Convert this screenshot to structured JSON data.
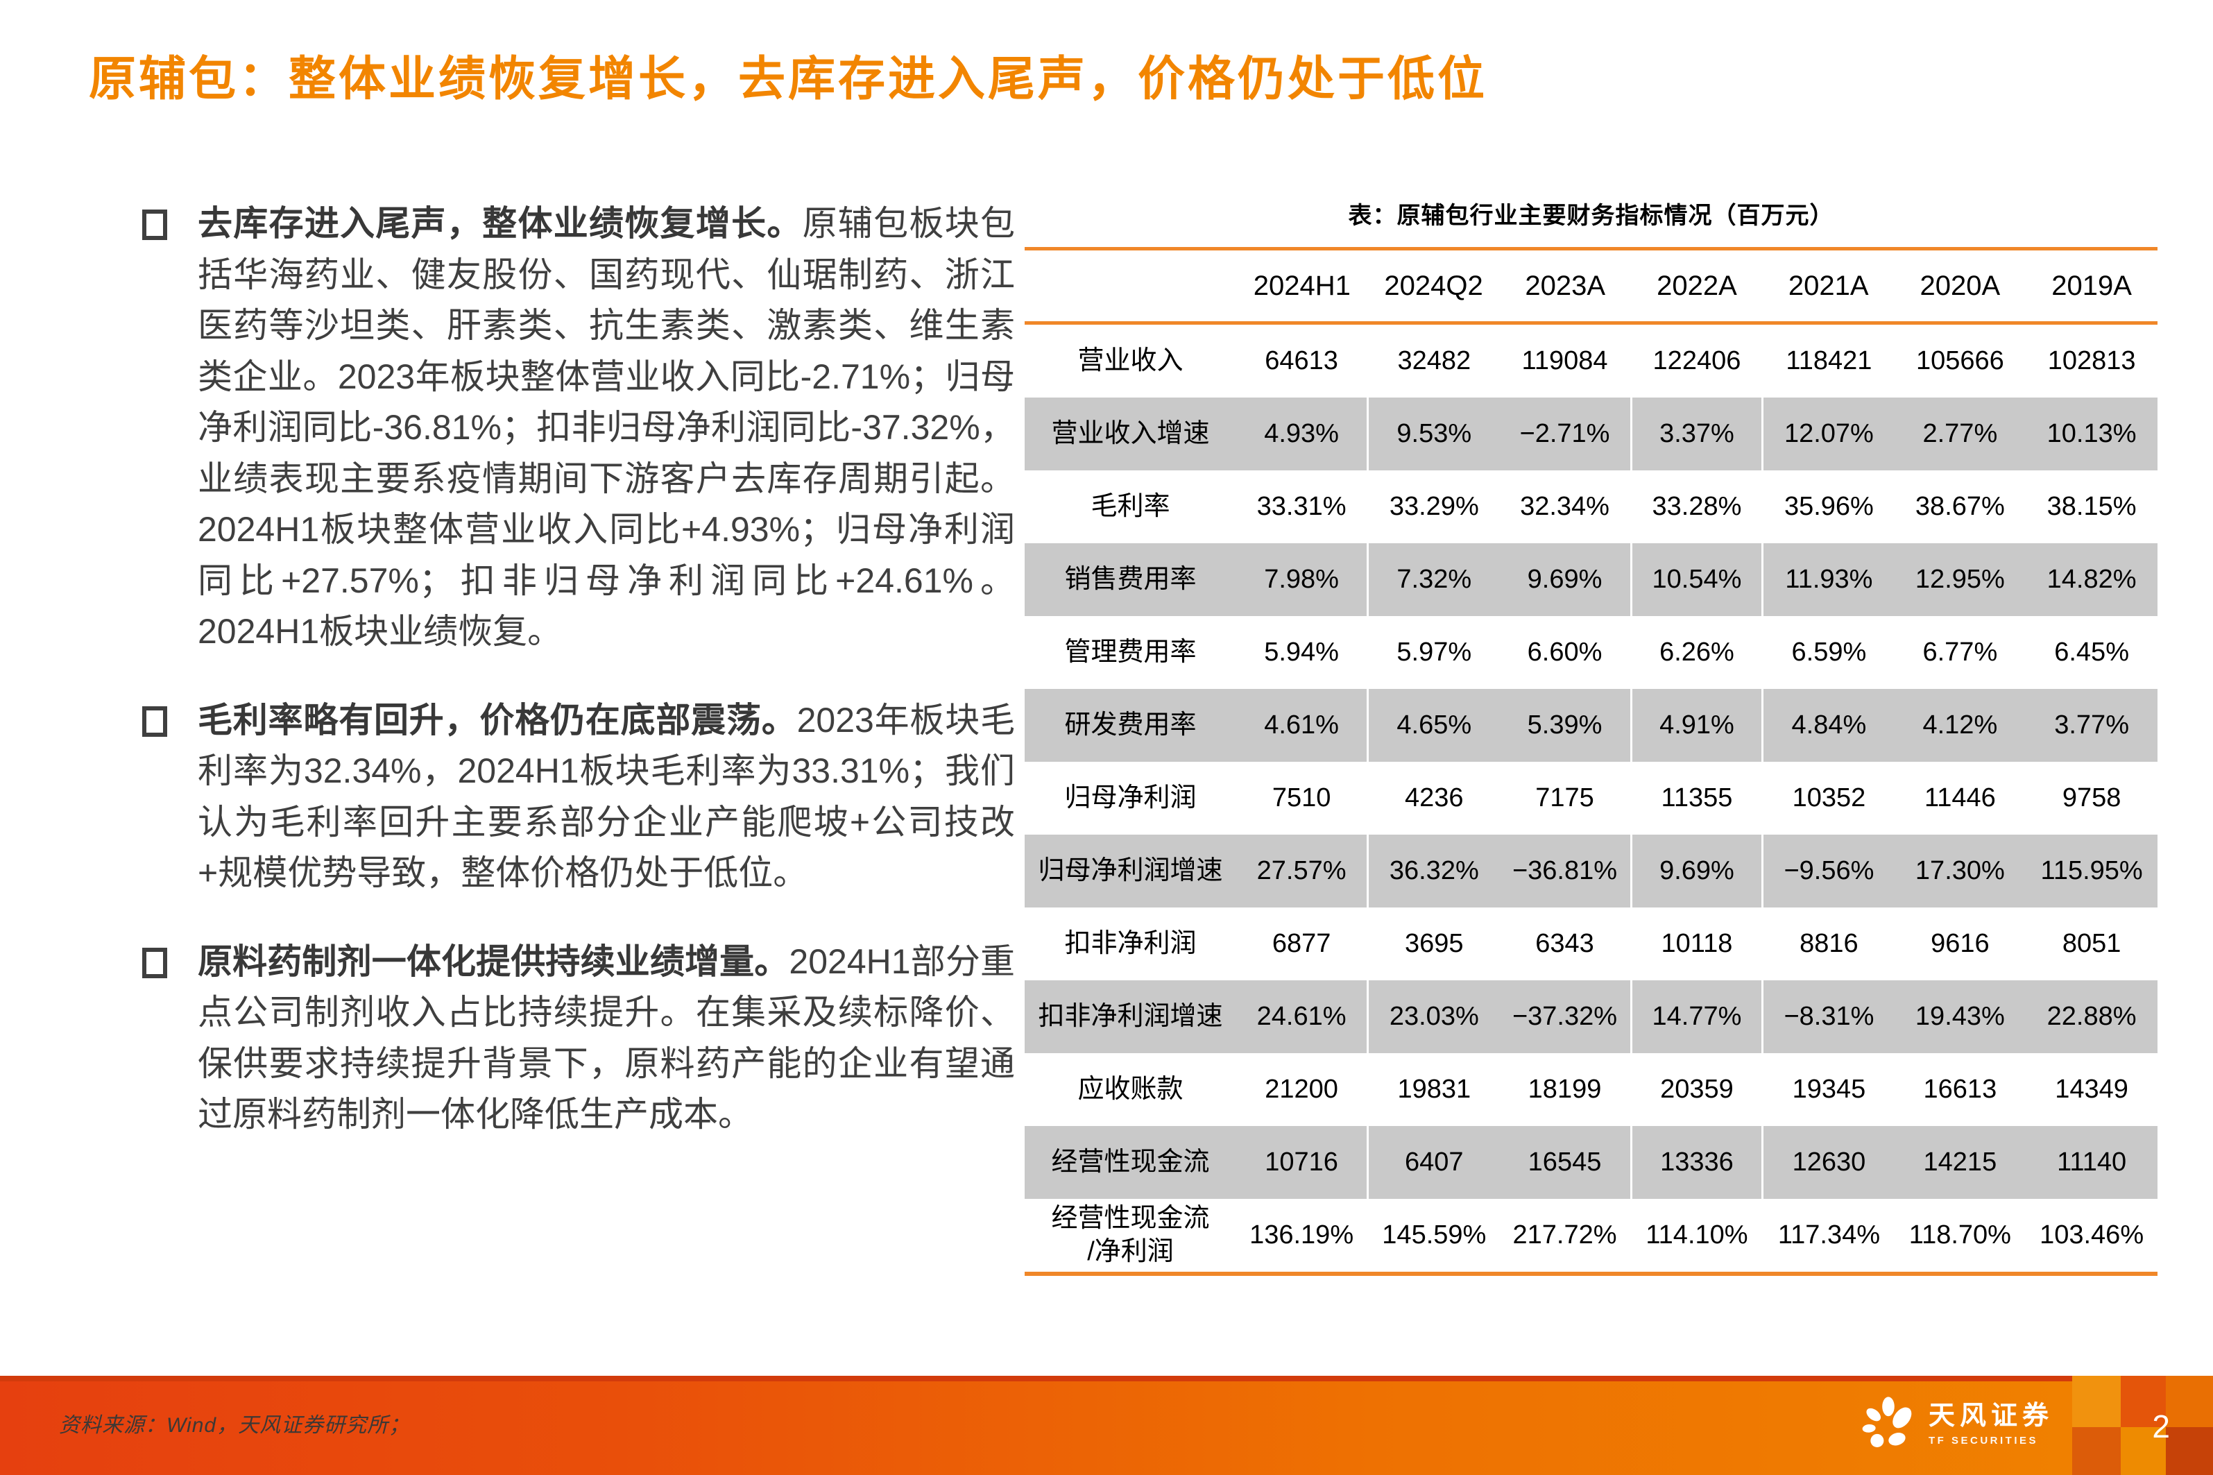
{
  "title": "原辅包：整体业绩恢复增长，去库存进入尾声，价格仍处于低位",
  "bullets": [
    {
      "lead": "去库存进入尾声，整体业绩恢复增长。",
      "text": "原辅包板块包括华海药业、健友股份、国药现代、仙琚制药、浙江医药等沙坦类、肝素类、抗生素类、激素类、维生素类企业。2023年板块整体营业收入同比-2.71%；归母净利润同比-36.81%；扣非归母净利润同比-37.32%，业绩表现主要系疫情期间下游客户去库存周期引起。2024H1板块整体营业收入同比+4.93%；归母净利润同比+27.57%；扣非归母净利润同比+24.61%。2024H1板块业绩恢复。"
    },
    {
      "lead": "毛利率略有回升，价格仍在底部震荡。",
      "text": "2023年板块毛利率为32.34%，2024H1板块毛利率为33.31%；我们认为毛利率回升主要系部分企业产能爬坡+公司技改+规模优势导致，整体价格仍处于低位。"
    },
    {
      "lead": "原料药制剂一体化提供持续业绩增量。",
      "text": "2024H1部分重点公司制剂收入占比持续提升。在集采及续标降价、保供要求持续提升背景下，原料药产能的企业有望通过原料药制剂一体化降低生产成本。"
    }
  ],
  "table": {
    "caption": "表：原辅包行业主要财务指标情况（百万元）",
    "columns": [
      "",
      "2024H1",
      "2024Q2",
      "2023A",
      "2022A",
      "2021A",
      "2020A",
      "2019A"
    ],
    "rows": [
      {
        "label": "营业收入",
        "values": [
          "64613",
          "32482",
          "119084",
          "122406",
          "118421",
          "105666",
          "102813"
        ]
      },
      {
        "label": "营业收入增速",
        "values": [
          "4.93%",
          "9.53%",
          "−2.71%",
          "3.37%",
          "12.07%",
          "2.77%",
          "10.13%"
        ]
      },
      {
        "label": "毛利率",
        "values": [
          "33.31%",
          "33.29%",
          "32.34%",
          "33.28%",
          "35.96%",
          "38.67%",
          "38.15%"
        ]
      },
      {
        "label": "销售费用率",
        "values": [
          "7.98%",
          "7.32%",
          "9.69%",
          "10.54%",
          "11.93%",
          "12.95%",
          "14.82%"
        ]
      },
      {
        "label": "管理费用率",
        "values": [
          "5.94%",
          "5.97%",
          "6.60%",
          "6.26%",
          "6.59%",
          "6.77%",
          "6.45%"
        ]
      },
      {
        "label": "研发费用率",
        "values": [
          "4.61%",
          "4.65%",
          "5.39%",
          "4.91%",
          "4.84%",
          "4.12%",
          "3.77%"
        ]
      },
      {
        "label": "归母净利润",
        "values": [
          "7510",
          "4236",
          "7175",
          "11355",
          "10352",
          "11446",
          "9758"
        ]
      },
      {
        "label": "归母净利润增速",
        "values": [
          "27.57%",
          "36.32%",
          "−36.81%",
          "9.69%",
          "−9.56%",
          "17.30%",
          "115.95%"
        ]
      },
      {
        "label": "扣非净利润",
        "values": [
          "6877",
          "3695",
          "6343",
          "10118",
          "8816",
          "9616",
          "8051"
        ]
      },
      {
        "label": "扣非净利润增速",
        "values": [
          "24.61%",
          "23.03%",
          "−37.32%",
          "14.77%",
          "−8.31%",
          "19.43%",
          "22.88%"
        ]
      },
      {
        "label": "应收账款",
        "values": [
          "21200",
          "19831",
          "18199",
          "20359",
          "19345",
          "16613",
          "14349"
        ]
      },
      {
        "label": "经营性现金流",
        "values": [
          "10716",
          "6407",
          "16545",
          "13336",
          "12630",
          "14215",
          "11140"
        ]
      },
      {
        "label": "经营性现金流\n/净利润",
        "values": [
          "136.19%",
          "145.59%",
          "217.72%",
          "114.10%",
          "117.34%",
          "118.70%",
          "103.46%"
        ]
      }
    ]
  },
  "footer": {
    "source": "资料来源：Wind，天风证券研究所；",
    "logo_cn": "天风证券",
    "logo_en": "TF SECURITIES",
    "page": "2"
  },
  "colors": {
    "title_orange": "#F28500",
    "table_line_orange": "#F08728",
    "row_stripe_gray": "#C9C9C9",
    "body_text_gray": "#3F3F3F",
    "footer_gradient_left": "#E6400F",
    "footer_gradient_right": "#F08300"
  }
}
